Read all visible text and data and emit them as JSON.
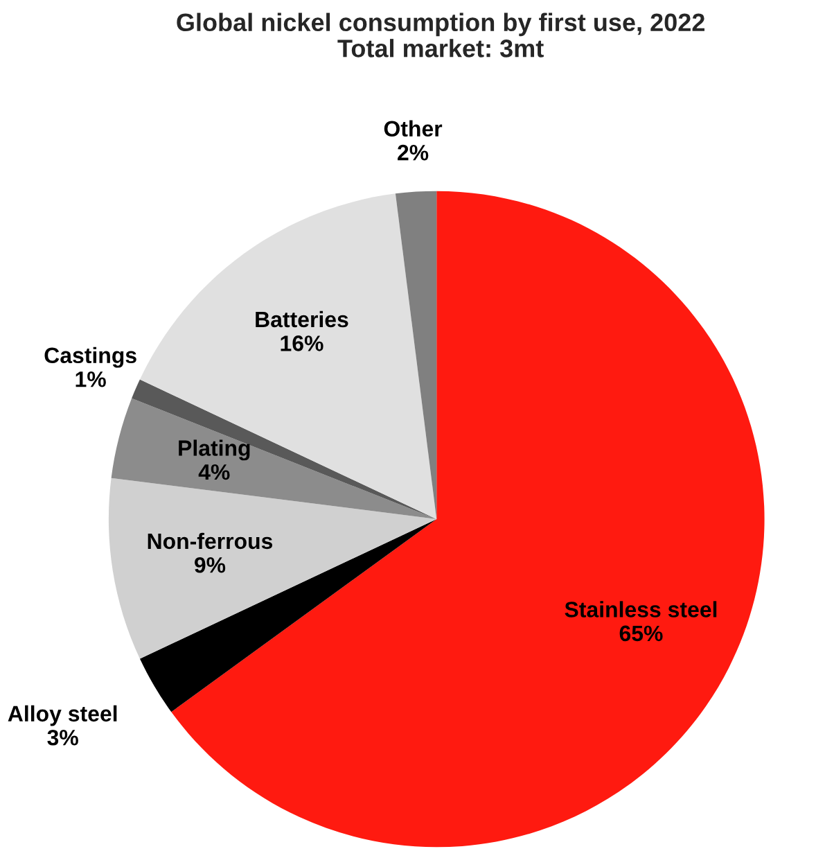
{
  "chart_data": {
    "type": "pie",
    "title": "Global nickel consumption by first use, 2022\nTotal market: 3mt",
    "categories": [
      "Stainless steel",
      "Alloy steel",
      "Non-ferrous",
      "Plating",
      "Castings",
      "Batteries",
      "Other"
    ],
    "values": [
      65,
      3,
      9,
      4,
      1,
      16,
      2
    ],
    "colors": [
      "#ff1a10",
      "#000000",
      "#d0d0d0",
      "#8c8c8c",
      "#595959",
      "#e0e0e0",
      "#808080"
    ],
    "value_labels": [
      "65%",
      "3%",
      "9%",
      "4%",
      "1%",
      "16%",
      "2%"
    ]
  }
}
